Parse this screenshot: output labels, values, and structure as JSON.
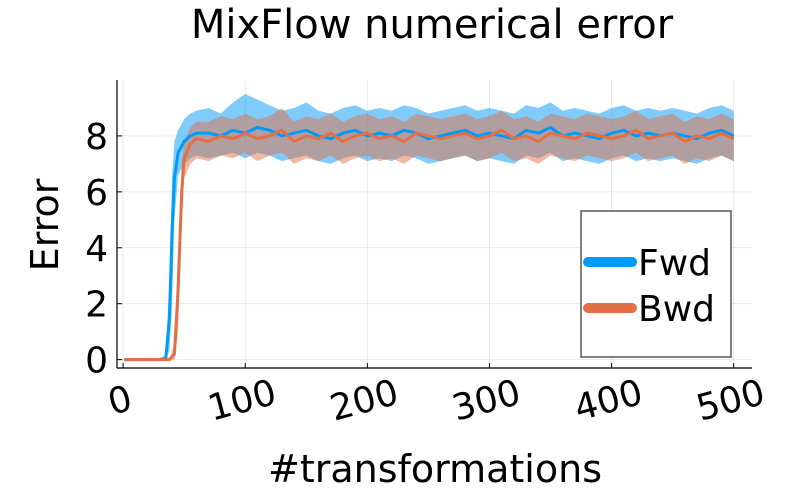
{
  "chart_data": {
    "type": "line",
    "title": "MixFlow numerical error",
    "xlabel": "#transformations",
    "ylabel": "Error",
    "xlim": [
      -5,
      515
    ],
    "ylim": [
      -0.3,
      10.0
    ],
    "xticks": [
      0,
      100,
      200,
      300,
      400,
      500
    ],
    "xtick_labels": [
      "0",
      "100",
      "200",
      "300",
      "400",
      "500"
    ],
    "yticks": [
      0,
      2,
      4,
      6,
      8
    ],
    "ytick_labels": [
      "0",
      "2",
      "4",
      "6",
      "8"
    ],
    "grid": true,
    "legend_position": "bottom-right",
    "series": [
      {
        "name": "Fwd",
        "color": "#009af9",
        "x": [
          1,
          10,
          20,
          30,
          35,
          38,
          40,
          42,
          45,
          50,
          55,
          60,
          70,
          80,
          90,
          100,
          110,
          120,
          130,
          140,
          150,
          160,
          170,
          180,
          190,
          200,
          210,
          220,
          230,
          240,
          250,
          260,
          270,
          280,
          290,
          300,
          310,
          320,
          330,
          340,
          350,
          360,
          370,
          380,
          390,
          400,
          410,
          420,
          430,
          440,
          450,
          460,
          470,
          480,
          490,
          500
        ],
        "mean": [
          0,
          0,
          0,
          0,
          0.05,
          1.5,
          4.5,
          6.5,
          7.4,
          7.8,
          8.0,
          8.1,
          8.1,
          8.0,
          8.2,
          8.1,
          8.3,
          8.2,
          8.0,
          8.1,
          8.2,
          8.0,
          7.9,
          8.1,
          8.2,
          8.0,
          8.1,
          8.0,
          8.2,
          8.1,
          7.9,
          8.0,
          8.1,
          8.2,
          8.0,
          8.1,
          8.0,
          7.9,
          8.2,
          8.1,
          8.3,
          8.0,
          8.1,
          8.0,
          7.9,
          8.1,
          8.2,
          8.0,
          8.1,
          8.0,
          8.1,
          8.0,
          7.9,
          8.1,
          8.2,
          8.0
        ],
        "lower": [
          0,
          0,
          0,
          0,
          0,
          0.3,
          2.0,
          5.0,
          6.6,
          7.0,
          7.2,
          7.3,
          7.2,
          7.3,
          7.4,
          7.2,
          7.4,
          7.3,
          7.1,
          7.2,
          7.3,
          7.1,
          7.0,
          7.2,
          7.3,
          7.1,
          7.2,
          7.1,
          7.3,
          7.2,
          7.0,
          7.1,
          7.2,
          7.3,
          7.1,
          7.2,
          7.1,
          7.0,
          7.3,
          7.2,
          7.4,
          7.1,
          7.2,
          7.1,
          7.0,
          7.2,
          7.3,
          7.1,
          7.2,
          7.1,
          7.2,
          7.1,
          7.0,
          7.2,
          7.3,
          7.1
        ],
        "upper": [
          0,
          0,
          0,
          0,
          0.2,
          3.0,
          6.5,
          7.8,
          8.2,
          8.6,
          8.8,
          8.9,
          9.0,
          8.8,
          9.2,
          9.5,
          9.3,
          9.1,
          8.9,
          9.0,
          9.2,
          8.9,
          8.8,
          9.0,
          9.1,
          8.9,
          9.0,
          8.9,
          9.1,
          9.0,
          8.8,
          8.9,
          9.0,
          9.1,
          8.9,
          9.0,
          8.9,
          8.8,
          9.1,
          9.0,
          9.2,
          8.9,
          9.0,
          8.9,
          8.8,
          9.0,
          9.1,
          8.9,
          9.0,
          8.9,
          9.0,
          8.9,
          8.8,
          9.0,
          9.1,
          8.9
        ]
      },
      {
        "name": "Bwd",
        "color": "#e26f46",
        "x": [
          1,
          10,
          20,
          30,
          38,
          42,
          45,
          48,
          50,
          55,
          60,
          70,
          80,
          90,
          100,
          110,
          120,
          130,
          140,
          150,
          160,
          170,
          180,
          190,
          200,
          210,
          220,
          230,
          240,
          250,
          260,
          270,
          280,
          290,
          300,
          310,
          320,
          330,
          340,
          350,
          360,
          370,
          380,
          390,
          400,
          410,
          420,
          430,
          440,
          450,
          460,
          470,
          480,
          490,
          500
        ],
        "mean": [
          0,
          0,
          0,
          0,
          0,
          0.2,
          2.5,
          6.0,
          7.2,
          7.7,
          7.9,
          7.8,
          8.0,
          7.9,
          8.1,
          7.9,
          8.0,
          8.2,
          7.8,
          8.0,
          7.9,
          8.1,
          7.8,
          8.0,
          8.1,
          7.9,
          8.0,
          7.8,
          8.1,
          8.0,
          7.9,
          8.0,
          8.1,
          7.9,
          8.0,
          8.2,
          7.9,
          8.0,
          7.8,
          8.1,
          8.0,
          7.9,
          8.1,
          8.0,
          7.9,
          8.0,
          8.2,
          7.9,
          8.0,
          8.1,
          7.8,
          8.0,
          7.9,
          8.1,
          7.9
        ],
        "lower": [
          0,
          0,
          0,
          0,
          0,
          0,
          1.0,
          4.8,
          6.5,
          7.0,
          7.2,
          7.1,
          7.3,
          7.2,
          7.4,
          7.1,
          7.3,
          7.4,
          7.0,
          7.2,
          7.1,
          7.3,
          7.0,
          7.2,
          7.3,
          7.1,
          7.2,
          7.0,
          7.3,
          7.2,
          7.1,
          7.2,
          7.3,
          7.1,
          7.2,
          7.4,
          7.1,
          7.2,
          7.0,
          7.3,
          7.2,
          7.1,
          7.3,
          7.2,
          7.1,
          7.2,
          7.4,
          7.1,
          7.2,
          7.3,
          7.0,
          7.2,
          7.1,
          7.3,
          7.1
        ],
        "upper": [
          0,
          0,
          0,
          0,
          0,
          0.6,
          4.0,
          7.0,
          7.8,
          8.3,
          8.5,
          8.5,
          8.7,
          8.6,
          8.8,
          8.6,
          8.7,
          9.0,
          8.5,
          8.7,
          8.6,
          8.8,
          8.5,
          8.7,
          8.8,
          8.6,
          8.7,
          8.5,
          8.8,
          8.7,
          8.6,
          8.7,
          8.8,
          8.6,
          8.7,
          8.9,
          8.6,
          8.7,
          8.5,
          8.8,
          8.7,
          8.6,
          8.8,
          8.7,
          8.6,
          8.7,
          8.9,
          8.6,
          8.7,
          8.8,
          8.5,
          8.7,
          8.6,
          8.8,
          8.6
        ]
      }
    ]
  }
}
